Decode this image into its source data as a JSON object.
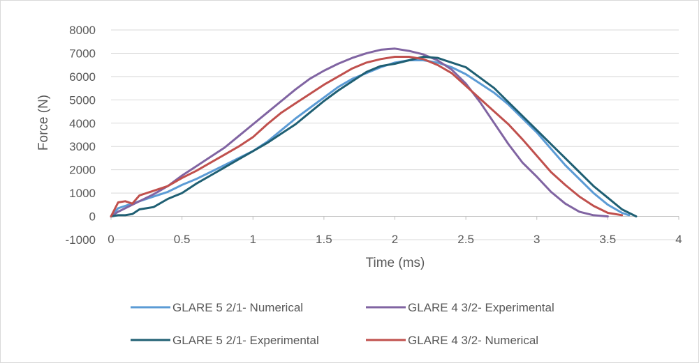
{
  "chart_data": {
    "type": "line",
    "title": "",
    "xlabel": "Time (ms)",
    "ylabel": "Force (N)",
    "xlim": [
      0,
      4
    ],
    "ylim": [
      -1000,
      8000
    ],
    "xticks": [
      0,
      0.5,
      1,
      1.5,
      2,
      2.5,
      3,
      3.5,
      4
    ],
    "xtick_labels": [
      "0",
      "0.5",
      "1",
      "1.5",
      "2",
      "2.5",
      "3",
      "3.5",
      "4"
    ],
    "yticks": [
      -1000,
      0,
      1000,
      2000,
      3000,
      4000,
      5000,
      6000,
      7000,
      8000
    ],
    "ytick_labels": [
      "-1000",
      "0",
      "1000",
      "2000",
      "3000",
      "4000",
      "5000",
      "6000",
      "7000",
      "8000"
    ],
    "grid": true,
    "legend_position": "bottom",
    "series": [
      {
        "name": "GLARE 5 2/1- Numerical",
        "color": "#5B9BD5",
        "x": [
          0,
          0.05,
          0.1,
          0.2,
          0.3,
          0.4,
          0.5,
          0.6,
          0.7,
          0.8,
          0.9,
          1.0,
          1.1,
          1.2,
          1.3,
          1.4,
          1.5,
          1.6,
          1.7,
          1.8,
          1.9,
          2.0,
          2.1,
          2.2,
          2.3,
          2.4,
          2.5,
          2.6,
          2.7,
          2.8,
          2.9,
          3.0,
          3.1,
          3.2,
          3.3,
          3.4,
          3.5,
          3.6,
          3.65
        ],
        "y": [
          0,
          350,
          450,
          650,
          850,
          1050,
          1350,
          1600,
          1900,
          2200,
          2500,
          2800,
          3200,
          3700,
          4200,
          4650,
          5100,
          5550,
          5900,
          6150,
          6400,
          6600,
          6700,
          6700,
          6600,
          6400,
          6100,
          5700,
          5300,
          4800,
          4200,
          3600,
          2900,
          2200,
          1600,
          1000,
          500,
          150,
          50
        ]
      },
      {
        "name": "GLARE 4 3/2- Experimental",
        "color": "#8064A2",
        "x": [
          0,
          0.05,
          0.1,
          0.2,
          0.3,
          0.4,
          0.5,
          0.6,
          0.7,
          0.8,
          0.9,
          1.0,
          1.1,
          1.2,
          1.3,
          1.4,
          1.5,
          1.6,
          1.7,
          1.8,
          1.9,
          2.0,
          2.1,
          2.2,
          2.3,
          2.4,
          2.5,
          2.6,
          2.7,
          2.8,
          2.9,
          3.0,
          3.1,
          3.2,
          3.3,
          3.4,
          3.5
        ],
        "y": [
          0,
          200,
          350,
          650,
          950,
          1300,
          1750,
          2150,
          2550,
          2950,
          3450,
          3950,
          4450,
          4950,
          5450,
          5900,
          6250,
          6550,
          6800,
          7000,
          7150,
          7200,
          7100,
          6950,
          6700,
          6300,
          5700,
          4900,
          4000,
          3100,
          2300,
          1700,
          1050,
          550,
          200,
          50,
          0
        ]
      },
      {
        "name": "GLARE 5 2/1- Experimental",
        "color": "#1F5F73",
        "x": [
          0,
          0.05,
          0.1,
          0.15,
          0.2,
          0.25,
          0.3,
          0.4,
          0.5,
          0.6,
          0.7,
          0.8,
          0.9,
          1.0,
          1.1,
          1.2,
          1.3,
          1.4,
          1.5,
          1.6,
          1.7,
          1.8,
          1.9,
          2.0,
          2.1,
          2.2,
          2.3,
          2.4,
          2.5,
          2.6,
          2.7,
          2.8,
          2.9,
          3.0,
          3.1,
          3.2,
          3.3,
          3.4,
          3.5,
          3.6,
          3.7
        ],
        "y": [
          0,
          50,
          50,
          100,
          300,
          350,
          400,
          750,
          1000,
          1400,
          1750,
          2100,
          2450,
          2800,
          3150,
          3550,
          3950,
          4450,
          4950,
          5400,
          5800,
          6200,
          6450,
          6550,
          6700,
          6850,
          6800,
          6600,
          6400,
          5950,
          5500,
          4900,
          4300,
          3700,
          3100,
          2500,
          1900,
          1300,
          800,
          300,
          0
        ]
      },
      {
        "name": "GLARE 4 3/2- Numerical",
        "color": "#C0504D",
        "x": [
          0,
          0.05,
          0.1,
          0.15,
          0.2,
          0.3,
          0.4,
          0.5,
          0.6,
          0.7,
          0.8,
          0.9,
          1.0,
          1.1,
          1.2,
          1.3,
          1.4,
          1.5,
          1.6,
          1.7,
          1.8,
          1.9,
          2.0,
          2.1,
          2.2,
          2.3,
          2.4,
          2.5,
          2.6,
          2.7,
          2.8,
          2.9,
          3.0,
          3.1,
          3.2,
          3.3,
          3.4,
          3.5,
          3.6
        ],
        "y": [
          0,
          600,
          650,
          550,
          900,
          1100,
          1300,
          1650,
          1950,
          2300,
          2650,
          3000,
          3400,
          3950,
          4450,
          4850,
          5250,
          5650,
          6000,
          6350,
          6600,
          6750,
          6850,
          6850,
          6750,
          6500,
          6150,
          5600,
          5050,
          4500,
          3950,
          3300,
          2600,
          1900,
          1350,
          850,
          450,
          150,
          50
        ]
      }
    ]
  }
}
